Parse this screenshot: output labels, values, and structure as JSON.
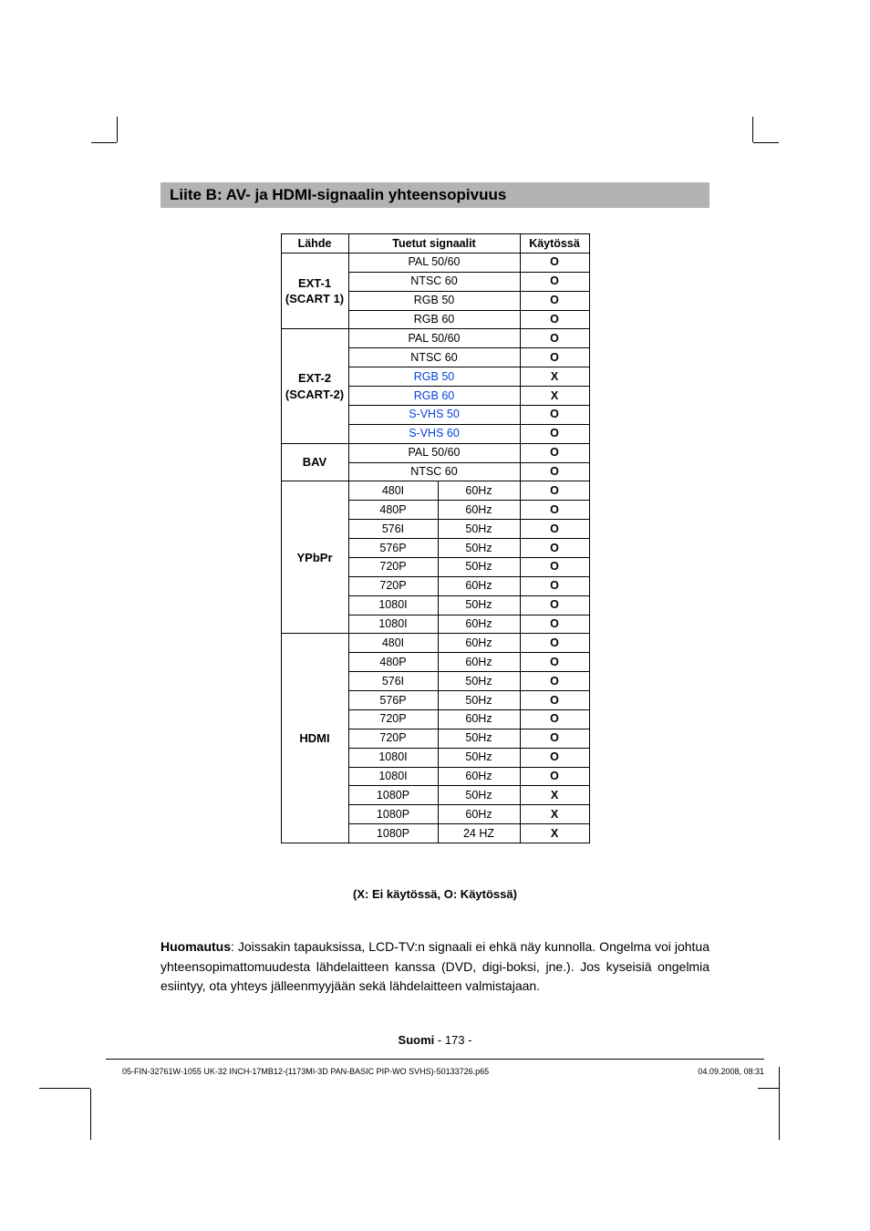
{
  "title": "Liite B: AV- ja HDMI-signaalin yhteensopivuus",
  "headers": {
    "source": "Lähde",
    "signals": "Tuetut signaalit",
    "available": "Käytössä"
  },
  "groups": [
    {
      "src_lines": [
        "EXT-1",
        "(SCART 1)"
      ],
      "rows": [
        {
          "cells": [
            "PAL 50/60"
          ],
          "span": 2,
          "avail": "O"
        },
        {
          "cells": [
            "NTSC 60"
          ],
          "span": 2,
          "avail": "O"
        },
        {
          "cells": [
            "RGB 50"
          ],
          "span": 2,
          "avail": "O"
        },
        {
          "cells": [
            "RGB 60"
          ],
          "span": 2,
          "avail": "O"
        }
      ]
    },
    {
      "src_lines": [
        "EXT-2",
        "(SCART-2)"
      ],
      "rows": [
        {
          "cells": [
            "PAL 50/60"
          ],
          "span": 2,
          "avail": "O"
        },
        {
          "cells": [
            "NTSC 60"
          ],
          "span": 2,
          "avail": "O"
        },
        {
          "cells": [
            "RGB 50"
          ],
          "span": 2,
          "avail": "X",
          "blue": true,
          "boldAvail": true
        },
        {
          "cells": [
            "RGB 60"
          ],
          "span": 2,
          "avail": "X",
          "blue": true,
          "boldAvail": true
        },
        {
          "cells": [
            "S-VHS 50"
          ],
          "span": 2,
          "avail": "O",
          "blue": true
        },
        {
          "cells": [
            "S-VHS 60"
          ],
          "span": 2,
          "avail": "O",
          "blue": true
        }
      ]
    },
    {
      "src_lines": [
        "BAV"
      ],
      "rows": [
        {
          "cells": [
            "PAL 50/60"
          ],
          "span": 2,
          "avail": "O"
        },
        {
          "cells": [
            "NTSC 60"
          ],
          "span": 2,
          "avail": "O"
        }
      ]
    },
    {
      "src_lines": [
        "YPbPr"
      ],
      "rows": [
        {
          "cells": [
            "480I",
            "60Hz"
          ],
          "span": 1,
          "avail": "O"
        },
        {
          "cells": [
            "480P",
            "60Hz"
          ],
          "span": 1,
          "avail": "O"
        },
        {
          "cells": [
            "576I",
            "50Hz"
          ],
          "span": 1,
          "avail": "O"
        },
        {
          "cells": [
            "576P",
            "50Hz"
          ],
          "span": 1,
          "avail": "O"
        },
        {
          "cells": [
            "720P",
            "50Hz"
          ],
          "span": 1,
          "avail": "O"
        },
        {
          "cells": [
            "720P",
            "60Hz"
          ],
          "span": 1,
          "avail": "O"
        },
        {
          "cells": [
            "1080I",
            "50Hz"
          ],
          "span": 1,
          "avail": "O"
        },
        {
          "cells": [
            "1080I",
            "60Hz"
          ],
          "span": 1,
          "avail": "O"
        }
      ]
    },
    {
      "src_lines": [
        "HDMI"
      ],
      "rows": [
        {
          "cells": [
            "480I",
            "60Hz"
          ],
          "span": 1,
          "avail": "O"
        },
        {
          "cells": [
            "480P",
            "60Hz"
          ],
          "span": 1,
          "avail": "O"
        },
        {
          "cells": [
            "576I",
            "50Hz"
          ],
          "span": 1,
          "avail": "O"
        },
        {
          "cells": [
            "576P",
            "50Hz"
          ],
          "span": 1,
          "avail": "O"
        },
        {
          "cells": [
            "720P",
            "60Hz"
          ],
          "span": 1,
          "avail": "O"
        },
        {
          "cells": [
            "720P",
            "50Hz"
          ],
          "span": 1,
          "avail": "O"
        },
        {
          "cells": [
            "1080I",
            "50Hz"
          ],
          "span": 1,
          "avail": "O"
        },
        {
          "cells": [
            "1080I",
            "60Hz"
          ],
          "span": 1,
          "avail": "O"
        },
        {
          "cells": [
            "1080P",
            "50Hz"
          ],
          "span": 1,
          "avail": "X",
          "boldAvail": true
        },
        {
          "cells": [
            "1080P",
            "60Hz"
          ],
          "span": 1,
          "avail": "X",
          "boldAvail": true
        },
        {
          "cells": [
            "1080P",
            "24 HZ"
          ],
          "span": 1,
          "avail": "X",
          "boldAvail": true
        }
      ]
    }
  ],
  "legend": "(X: Ei käytössä, O: Käytössä)",
  "note_label": "Huomautus",
  "note_body": ": Joissakin tapauksissa, LCD-TV:n signaali ei ehkä näy kunnolla. Ongelma voi johtua yhteensopimattomuudesta lähdelaitteen kanssa (DVD, digi-boksi, jne.). Jos kyseisiä ongelmia esiintyy, ota yhteys jälleenmyyjään sekä lähdelaitteen valmistajaan.",
  "page_lang": "Suomi",
  "page_sep": "   - ",
  "page_num": "173 -",
  "footer": "05-FIN-32761W-1055 UK-32 INCH-17MB12-(1173MI-3D PAN-BASIC PIP-WO SVHS)-50133726.p65",
  "footer_date": "04.09.2008, 08:31"
}
